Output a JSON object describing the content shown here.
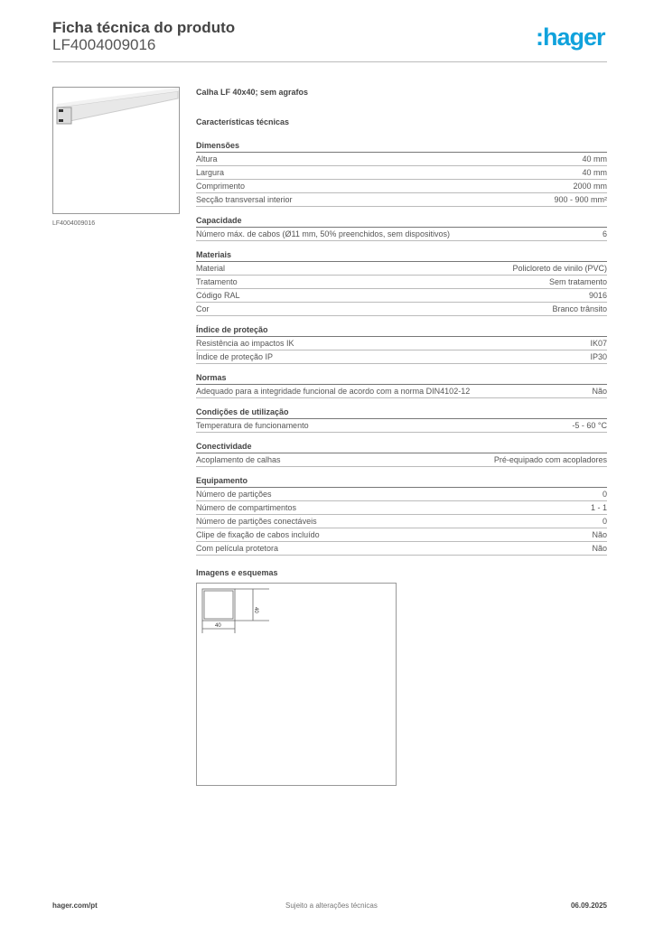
{
  "header": {
    "title": "Ficha técnica do produto",
    "code": "LF4004009016",
    "logo": "hager"
  },
  "image_caption": "LF4004009016",
  "product_name": "Calha LF 40x40; sem agrafos",
  "characteristics_title": "Características técnicas",
  "sections": [
    {
      "title": "Dimensões",
      "rows": [
        [
          "Altura",
          "40 mm"
        ],
        [
          "Largura",
          "40 mm"
        ],
        [
          "Comprimento",
          "2000 mm"
        ],
        [
          "Secção transversal interior",
          "900 - 900 mm²"
        ]
      ]
    },
    {
      "title": "Capacidade",
      "rows": [
        [
          "Número máx. de cabos (Ø11 mm, 50% preenchidos, sem dispositivos)",
          "6"
        ]
      ]
    },
    {
      "title": "Materiais",
      "rows": [
        [
          "Material",
          "Policloreto de vinilo (PVC)"
        ],
        [
          "Tratamento",
          "Sem tratamento"
        ],
        [
          "Código RAL",
          "9016"
        ],
        [
          "Cor",
          "Branco trânsito"
        ]
      ]
    },
    {
      "title": "Índice de proteção",
      "rows": [
        [
          "Resistência ao impactos IK",
          "IK07"
        ],
        [
          "Índice de proteção IP",
          "IP30"
        ]
      ]
    },
    {
      "title": "Normas",
      "rows": [
        [
          "Adequado para a integridade funcional de acordo com a norma DIN4102-12",
          "Não"
        ]
      ]
    },
    {
      "title": "Condições de utilização",
      "rows": [
        [
          "Temperatura de funcionamento",
          "-5 - 60 °C"
        ]
      ]
    },
    {
      "title": "Conectividade",
      "rows": [
        [
          "Acoplamento de calhas",
          "Pré-equipado com acopladores"
        ]
      ]
    },
    {
      "title": "Equipamento",
      "rows": [
        [
          "Número de partições",
          "0"
        ],
        [
          "Número de compartimentos",
          "1 - 1"
        ],
        [
          "Número de partições conectáveis",
          "0"
        ],
        [
          "Clipe de fixação de cabos incluído",
          "Não"
        ],
        [
          "Com película protetora",
          "Não"
        ]
      ]
    }
  ],
  "images_title": "Imagens e esquemas",
  "drawing": {
    "width_label": "40",
    "height_label": "40"
  },
  "footer": {
    "website": "hager.com/pt",
    "note": "Sujeito a alterações técnicas",
    "date": "06.09.2025"
  },
  "colors": {
    "brand": "#10a2dc"
  }
}
